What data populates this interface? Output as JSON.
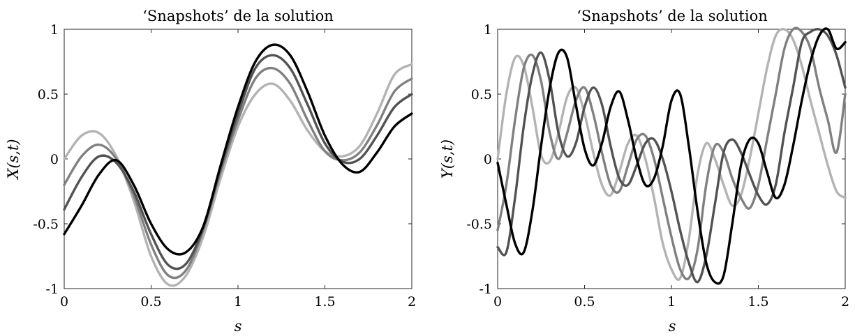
{
  "chart_data": [
    {
      "type": "line",
      "title": "‘Snapshots’ de la solution",
      "xlabel": "s",
      "ylabel": "X(s,t)",
      "xlim": [
        0,
        2
      ],
      "ylim": [
        -1,
        1
      ],
      "xticks": [
        "0",
        "0.5",
        "1",
        "1.5",
        "2"
      ],
      "yticks": [
        "1",
        "0.5",
        "0",
        "-0.5",
        "-1"
      ],
      "grid": false,
      "series_colors": [
        "#b3b3b3",
        "#808080",
        "#525252",
        "#000000"
      ],
      "x": [
        0,
        0.1,
        0.2,
        0.3,
        0.4,
        0.5,
        0.6,
        0.7,
        0.8,
        0.9,
        1.0,
        1.1,
        1.2,
        1.3,
        1.4,
        1.5,
        1.6,
        1.7,
        1.8,
        1.9,
        2.0
      ],
      "series": [
        {
          "values": [
            0.0,
            0.18,
            0.2,
            0.02,
            -0.32,
            -0.75,
            -0.97,
            -0.9,
            -0.6,
            -0.15,
            0.25,
            0.5,
            0.58,
            0.45,
            0.22,
            0.06,
            0.02,
            0.1,
            0.35,
            0.65,
            0.73
          ]
        },
        {
          "values": [
            -0.2,
            0.02,
            0.11,
            0.0,
            -0.28,
            -0.66,
            -0.9,
            -0.86,
            -0.55,
            -0.1,
            0.3,
            0.62,
            0.7,
            0.58,
            0.3,
            0.06,
            -0.01,
            0.05,
            0.26,
            0.52,
            0.62
          ]
        },
        {
          "values": [
            -0.39,
            -0.14,
            0.02,
            -0.03,
            -0.25,
            -0.58,
            -0.82,
            -0.81,
            -0.53,
            -0.07,
            0.35,
            0.7,
            0.8,
            0.7,
            0.42,
            0.12,
            -0.02,
            0.0,
            0.18,
            0.4,
            0.5
          ]
        },
        {
          "values": [
            -0.58,
            -0.36,
            -0.12,
            -0.01,
            -0.2,
            -0.5,
            -0.7,
            -0.72,
            -0.52,
            -0.05,
            0.4,
            0.75,
            0.88,
            0.8,
            0.52,
            0.18,
            -0.04,
            -0.1,
            0.05,
            0.25,
            0.35
          ]
        }
      ]
    },
    {
      "type": "line",
      "title": "‘Snapshots’ de la solution",
      "xlabel": "s",
      "ylabel": "Y(s,t)",
      "xlim": [
        0,
        2
      ],
      "ylim": [
        -1,
        1
      ],
      "xticks": [
        "0",
        "0.5",
        "1",
        "1.5",
        "2"
      ],
      "yticks": [
        "1",
        "0.5",
        "0",
        "-0.5",
        "-1"
      ],
      "grid": false,
      "series_colors": [
        "#b3b3b3",
        "#808080",
        "#525252",
        "#000000"
      ],
      "x": [
        0,
        0.05,
        0.1,
        0.15,
        0.2,
        0.25,
        0.3,
        0.35,
        0.4,
        0.45,
        0.5,
        0.55,
        0.6,
        0.65,
        0.7,
        0.75,
        0.8,
        0.85,
        0.9,
        0.95,
        1.0,
        1.05,
        1.1,
        1.15,
        1.2,
        1.25,
        1.3,
        1.35,
        1.4,
        1.45,
        1.5,
        1.55,
        1.6,
        1.65,
        1.7,
        1.75,
        1.8,
        1.85,
        1.9,
        1.95,
        2.0
      ],
      "series": [
        {
          "values": [
            0.0,
            0.5,
            0.78,
            0.72,
            0.4,
            0.03,
            -0.02,
            0.2,
            0.48,
            0.55,
            0.35,
            0.05,
            -0.2,
            -0.28,
            -0.1,
            0.12,
            0.18,
            0.0,
            -0.3,
            -0.65,
            -0.85,
            -0.92,
            -0.62,
            -0.12,
            0.12,
            0.0,
            -0.2,
            -0.36,
            -0.28,
            0.0,
            0.35,
            0.7,
            0.95,
            1.0,
            0.92,
            0.72,
            0.45,
            0.2,
            -0.05,
            -0.25,
            -0.3
          ]
        },
        {
          "values": [
            -0.55,
            -0.2,
            0.3,
            0.7,
            0.8,
            0.6,
            0.2,
            0.0,
            0.2,
            0.45,
            0.55,
            0.35,
            0.05,
            -0.2,
            -0.25,
            -0.05,
            0.15,
            0.18,
            0.0,
            -0.3,
            -0.6,
            -0.85,
            -0.92,
            -0.7,
            -0.2,
            0.1,
            0.05,
            -0.15,
            -0.3,
            -0.38,
            -0.2,
            0.15,
            0.5,
            0.85,
            1.0,
            0.98,
            0.85,
            0.55,
            0.3,
            0.05,
            0.5
          ]
        },
        {
          "values": [
            -0.68,
            -0.72,
            -0.3,
            0.25,
            0.65,
            0.82,
            0.6,
            0.2,
            0.02,
            0.12,
            0.4,
            0.55,
            0.42,
            0.1,
            -0.15,
            -0.2,
            -0.05,
            0.12,
            0.15,
            0.0,
            -0.25,
            -0.55,
            -0.8,
            -0.95,
            -0.75,
            -0.35,
            0.05,
            0.15,
            0.05,
            -0.12,
            -0.28,
            -0.35,
            -0.2,
            0.2,
            0.55,
            0.9,
            0.98,
            1.0,
            0.95,
            0.8,
            0.55
          ]
        },
        {
          "values": [
            -0.03,
            -0.35,
            -0.65,
            -0.72,
            -0.4,
            0.1,
            0.55,
            0.82,
            0.78,
            0.42,
            0.08,
            -0.05,
            0.12,
            0.4,
            0.52,
            0.3,
            0.0,
            -0.2,
            -0.15,
            0.1,
            0.45,
            0.5,
            0.1,
            -0.4,
            -0.8,
            -0.95,
            -0.9,
            -0.5,
            -0.05,
            0.15,
            0.12,
            -0.1,
            -0.3,
            -0.2,
            0.1,
            0.45,
            0.75,
            0.95,
            1.0,
            0.85,
            0.9
          ]
        }
      ]
    }
  ]
}
